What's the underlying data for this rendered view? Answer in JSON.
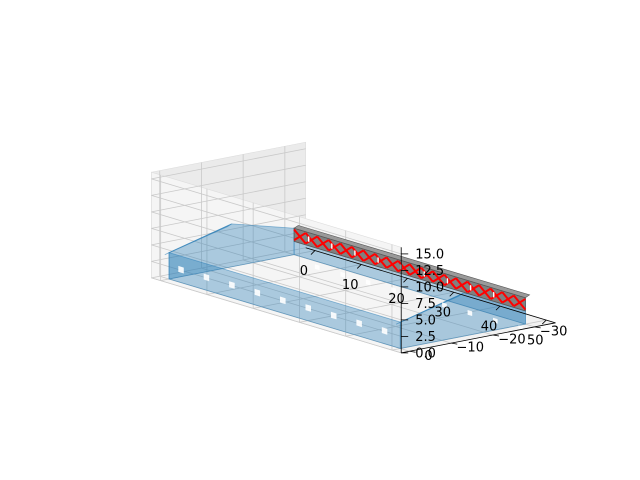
{
  "chart_data": {
    "type": "3d-surface",
    "title": "",
    "xlabel": "",
    "ylabel": "",
    "zlabel": "",
    "xlim": [
      -2,
      52
    ],
    "ylim": [
      -35,
      2
    ],
    "zlim": [
      0,
      16
    ],
    "x_ticks": [
      {
        "value": 0,
        "label": "0"
      },
      {
        "value": 10,
        "label": "10"
      },
      {
        "value": 20,
        "label": "20"
      },
      {
        "value": 30,
        "label": "30"
      },
      {
        "value": 40,
        "label": "40"
      },
      {
        "value": 50,
        "label": "50"
      }
    ],
    "y_ticks": [
      {
        "value": 0,
        "label": "0"
      },
      {
        "value": -10,
        "label": "−10"
      },
      {
        "value": -20,
        "label": "−20"
      },
      {
        "value": -30,
        "label": "−30"
      }
    ],
    "z_ticks": [
      {
        "value": 0,
        "label": "0.0"
      },
      {
        "value": 2.5,
        "label": "2.5"
      },
      {
        "value": 5,
        "label": "5.0"
      },
      {
        "value": 7.5,
        "label": "7.5"
      },
      {
        "value": 10,
        "label": "10.0"
      },
      {
        "value": 12.5,
        "label": "12.5"
      },
      {
        "value": 15,
        "label": "15.0"
      }
    ],
    "grid": true,
    "building": {
      "x_range": [
        0,
        50
      ],
      "y_range": [
        -30,
        0
      ],
      "wall_height": 4,
      "roof_peak_height": 6.5,
      "wall_color": "#1f77b4",
      "wall_opacity": 0.35,
      "truss_beam_color": "#808080",
      "truss_brace_color": "#ff0000",
      "opening_color": "#ffffff"
    }
  }
}
